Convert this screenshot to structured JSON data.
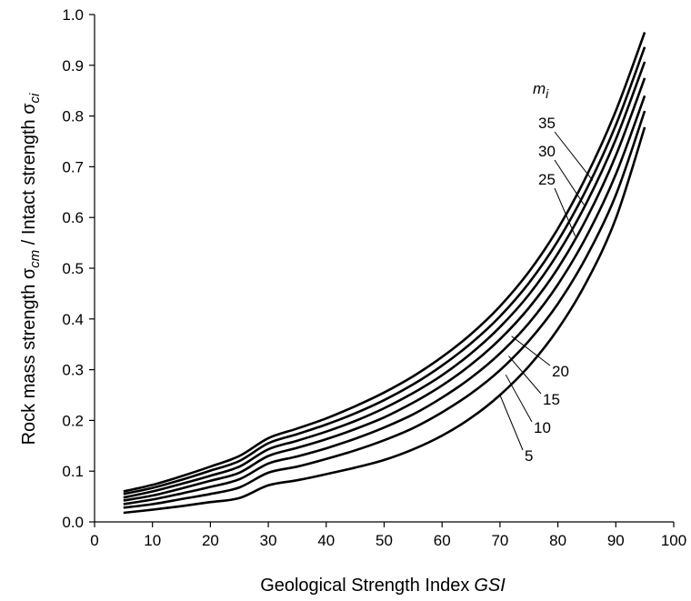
{
  "chart_data": {
    "type": "line",
    "title": "",
    "xlabel": "Geological Strength Index",
    "xlabel_italic": "GSI",
    "ylabel": "Rock mass strength σ",
    "ylabel_sub1": "cm",
    "ylabel_mid": " / Intact strength σ",
    "ylabel_sub2": "ci",
    "xlim": [
      0,
      100
    ],
    "ylim": [
      0,
      1.0
    ],
    "x_ticks": [
      0,
      10,
      20,
      30,
      40,
      50,
      60,
      70,
      80,
      90,
      100
    ],
    "y_ticks": [
      0.0,
      0.1,
      0.2,
      0.3,
      0.4,
      0.5,
      0.6,
      0.7,
      0.8,
      0.9,
      1.0
    ],
    "x_tick_labels": [
      "0",
      "10",
      "20",
      "30",
      "40",
      "50",
      "60",
      "70",
      "80",
      "90",
      "100"
    ],
    "y_tick_labels": [
      "0.0",
      "0.1",
      "0.2",
      "0.3",
      "0.4",
      "0.5",
      "0.6",
      "0.7",
      "0.8",
      "0.9",
      "1.0"
    ],
    "grid": false,
    "legend_title": "m",
    "legend_title_sub": "i",
    "x": [
      5,
      10,
      15,
      20,
      25,
      30,
      35,
      40,
      45,
      50,
      55,
      60,
      65,
      70,
      75,
      80,
      85,
      90,
      95
    ],
    "series": [
      {
        "name": "35",
        "values": [
          0.06,
          0.073,
          0.09,
          0.109,
          0.13,
          0.165,
          0.184,
          0.204,
          0.228,
          0.255,
          0.287,
          0.325,
          0.37,
          0.425,
          0.493,
          0.578,
          0.683,
          0.81,
          0.965
        ]
      },
      {
        "name": "30",
        "values": [
          0.055,
          0.067,
          0.083,
          0.101,
          0.12,
          0.155,
          0.173,
          0.192,
          0.214,
          0.24,
          0.271,
          0.308,
          0.352,
          0.405,
          0.471,
          0.554,
          0.657,
          0.782,
          0.936
        ]
      },
      {
        "name": "25",
        "values": [
          0.048,
          0.06,
          0.075,
          0.091,
          0.109,
          0.143,
          0.16,
          0.178,
          0.199,
          0.224,
          0.254,
          0.289,
          0.332,
          0.384,
          0.448,
          0.529,
          0.63,
          0.754,
          0.907
        ]
      },
      {
        "name": "20",
        "values": [
          0.042,
          0.052,
          0.066,
          0.081,
          0.097,
          0.13,
          0.146,
          0.163,
          0.183,
          0.206,
          0.235,
          0.269,
          0.31,
          0.36,
          0.422,
          0.5,
          0.599,
          0.722,
          0.875
        ]
      },
      {
        "name": "15",
        "values": [
          0.035,
          0.044,
          0.056,
          0.069,
          0.084,
          0.115,
          0.129,
          0.145,
          0.164,
          0.186,
          0.212,
          0.245,
          0.284,
          0.332,
          0.392,
          0.468,
          0.564,
          0.685,
          0.84
        ]
      },
      {
        "name": "10",
        "values": [
          0.028,
          0.035,
          0.045,
          0.055,
          0.068,
          0.097,
          0.109,
          0.124,
          0.141,
          0.161,
          0.185,
          0.216,
          0.253,
          0.299,
          0.357,
          0.43,
          0.524,
          0.644,
          0.81
        ]
      },
      {
        "name": "5",
        "values": [
          0.018,
          0.024,
          0.031,
          0.039,
          0.047,
          0.072,
          0.082,
          0.094,
          0.107,
          0.122,
          0.143,
          0.17,
          0.205,
          0.25,
          0.307,
          0.38,
          0.474,
          0.598,
          0.778
        ]
      }
    ],
    "annotations": [
      {
        "label": "35",
        "side": "upper",
        "at": [
          86,
          0.673
        ]
      },
      {
        "label": "30",
        "side": "upper",
        "at": [
          84.5,
          0.625
        ]
      },
      {
        "label": "25",
        "side": "upper",
        "at": [
          83,
          0.563
        ]
      },
      {
        "label": "20",
        "side": "lower",
        "at": [
          72,
          0.366
        ]
      },
      {
        "label": "15",
        "side": "lower",
        "at": [
          71.5,
          0.327
        ]
      },
      {
        "label": "10",
        "side": "lower",
        "at": [
          71,
          0.29
        ]
      },
      {
        "label": "5",
        "side": "lower",
        "at": [
          70,
          0.25
        ]
      }
    ],
    "colors": {
      "line": "#000000",
      "axis": "#000000",
      "background": "#ffffff"
    }
  }
}
